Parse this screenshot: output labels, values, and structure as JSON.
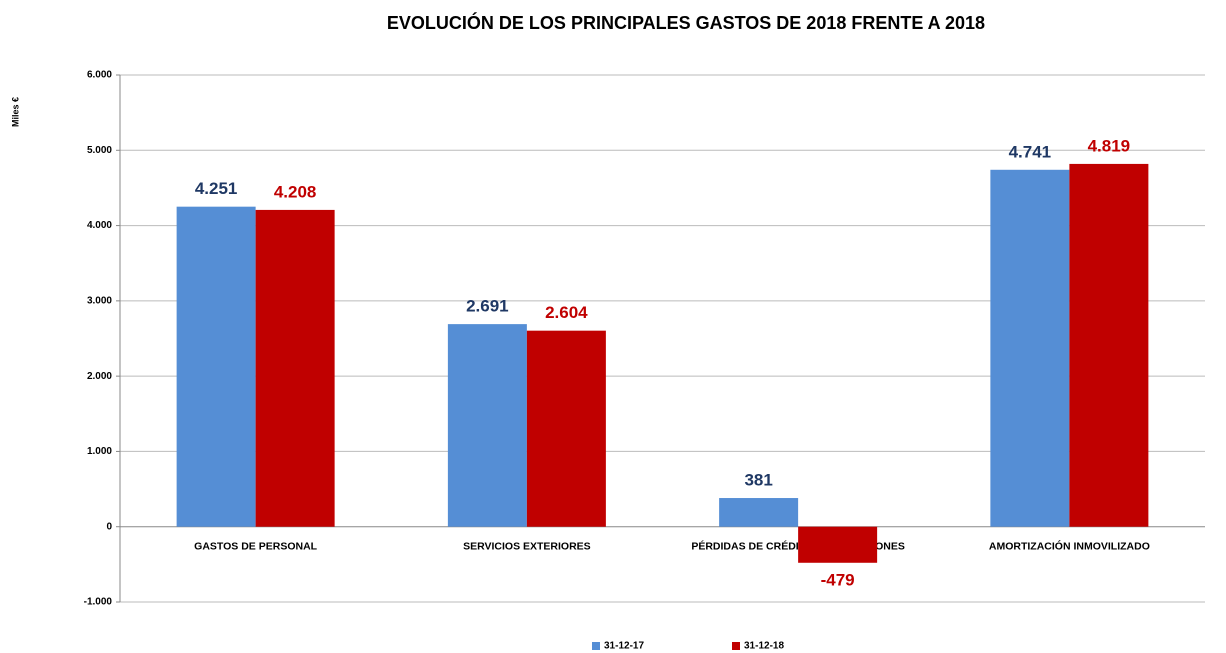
{
  "chart_data": {
    "type": "bar",
    "title": "EVOLUCIÓN DE LOS PRINCIPALES GASTOS DE 2018 FRENTE A 2018",
    "y_label": "Miles €",
    "categories": [
      "GASTOS DE PERSONAL",
      "SERVICIOS EXTERIORES",
      "PÉRDIDAS DE CRÉDITOS Y PROVISIONES",
      "AMORTIZACIÓN INMOVILIZADO"
    ],
    "series": [
      {
        "name": "31-12-17",
        "color": "#558ed5",
        "label_color": "#1f3864",
        "values": [
          4251,
          2691,
          381,
          4741
        ],
        "value_labels": [
          "4.251",
          "2.691",
          "381",
          "4.741"
        ]
      },
      {
        "name": "31-12-18",
        "color": "#c00000",
        "label_color": "#c00000",
        "values": [
          4208,
          2604,
          -479,
          4819
        ],
        "value_labels": [
          "4.208",
          "2.604",
          "-479",
          "4.819"
        ]
      }
    ],
    "ylim": [
      -1000,
      6000
    ],
    "yticks": [
      {
        "value": -1000,
        "label": "-1.000"
      },
      0,
      {
        "value": 1000,
        "label": "1.000"
      },
      {
        "value": 2000,
        "label": "2.000"
      },
      {
        "value": 3000,
        "label": "3.000"
      },
      {
        "value": 4000,
        "label": "4.000"
      },
      {
        "value": 5000,
        "label": "5.000"
      },
      {
        "value": 6000,
        "label": "6.000"
      }
    ],
    "grid": true,
    "legend": "bottom"
  }
}
